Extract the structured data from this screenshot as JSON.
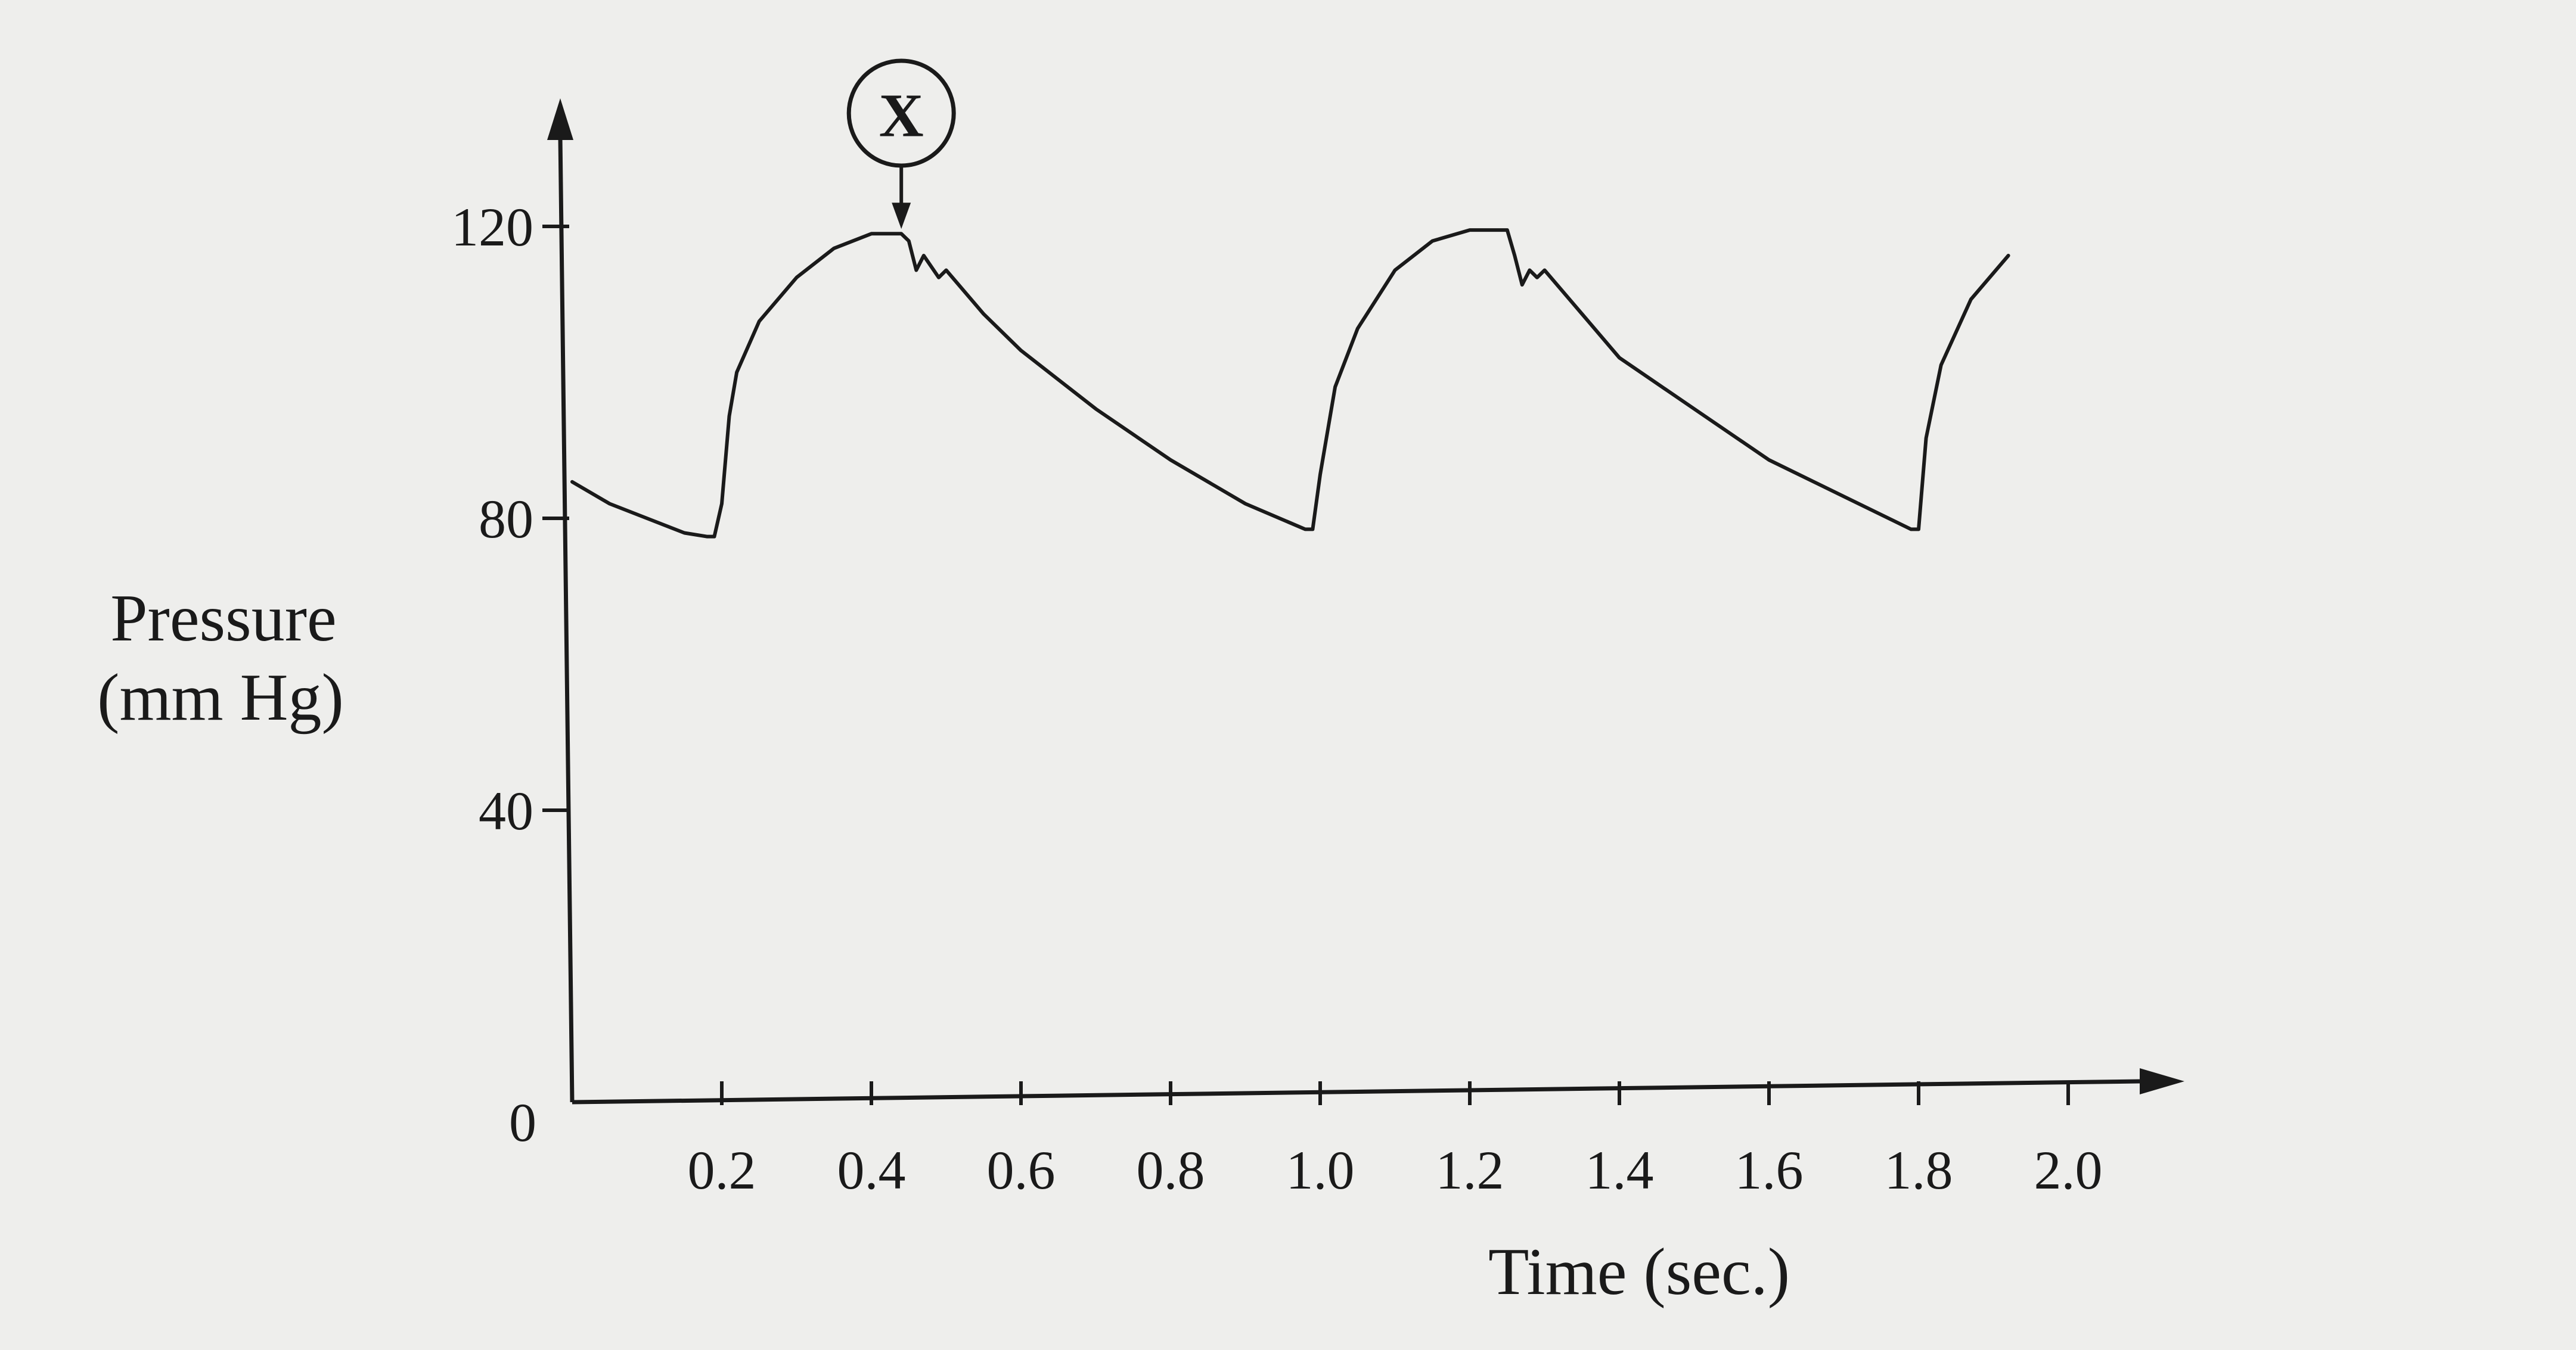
{
  "chart_data": {
    "type": "line",
    "title": "",
    "xlabel": "Time (sec.)",
    "ylabel": [
      "Pressure",
      "(mm Hg)"
    ],
    "xlim": [
      0,
      2.1
    ],
    "ylim": [
      0,
      130
    ],
    "x_ticks": [
      0.2,
      0.4,
      0.6,
      0.8,
      1.0,
      1.2,
      1.4,
      1.6,
      1.8,
      2.0
    ],
    "x_tick_labels": [
      "0.2",
      "0.4",
      "0.6",
      "0.8",
      "1.0",
      "1.2",
      "1.4",
      "1.6",
      "1.8",
      "2.0"
    ],
    "y_ticks": [
      0,
      40,
      80,
      120
    ],
    "y_tick_labels": [
      "0",
      "40",
      "80",
      "120"
    ],
    "grid": false,
    "series": [
      {
        "x": [
          0.0,
          0.05,
          0.1,
          0.15,
          0.18,
          0.19,
          0.2,
          0.21,
          0.22,
          0.25,
          0.3,
          0.35,
          0.4,
          0.44,
          0.45,
          0.46,
          0.47,
          0.49,
          0.5,
          0.55,
          0.6,
          0.7,
          0.8,
          0.9,
          0.98,
          0.99,
          1.0,
          1.02,
          1.05,
          1.1,
          1.15,
          1.2,
          1.25,
          1.26,
          1.27,
          1.28,
          1.29,
          1.3,
          1.35,
          1.4,
          1.5,
          1.6,
          1.7,
          1.79,
          1.8,
          1.81,
          1.83,
          1.87,
          1.92
        ],
        "y": [
          85,
          82,
          80,
          78,
          77.5,
          77.5,
          82,
          94,
          100,
          107,
          113,
          117,
          119,
          119,
          118,
          114,
          116,
          113,
          114,
          108,
          103,
          95,
          88,
          82,
          78.5,
          78.5,
          86,
          98,
          106,
          114,
          118,
          119.5,
          119.5,
          116,
          112,
          114,
          113,
          114,
          108,
          102,
          95,
          88,
          83,
          78.5,
          78.5,
          91,
          101,
          110,
          116
        ]
      }
    ],
    "annotations": [
      {
        "label": "X",
        "x": 0.44,
        "y": 119
      }
    ]
  }
}
